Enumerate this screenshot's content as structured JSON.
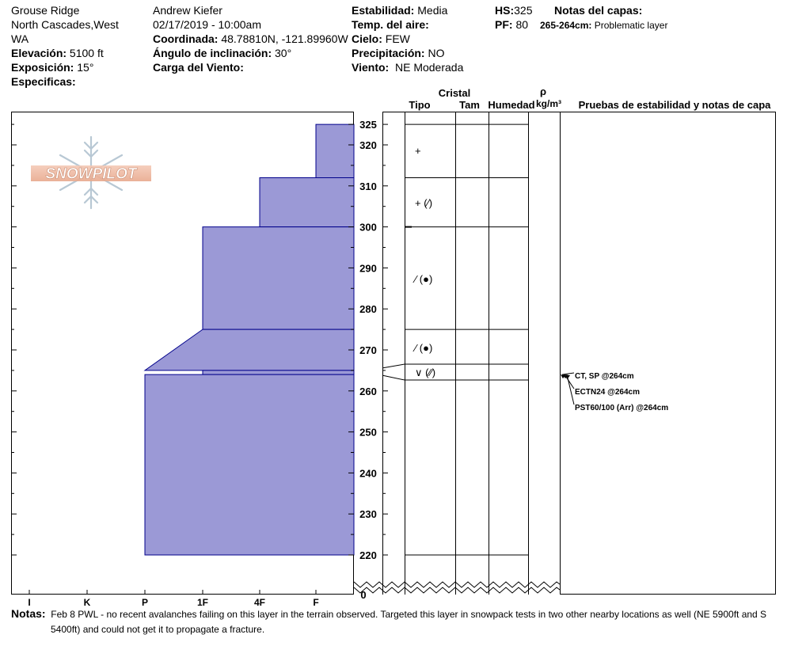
{
  "header": {
    "location": [
      "Grouse Ridge",
      "North Cascades,West",
      "WA"
    ],
    "elevation_label": "Elevación:",
    "elevation_value": "5100 ft",
    "aspect_label": "Exposición:",
    "aspect_value": "15°",
    "specifics_label": "Especificas:",
    "observer": "Andrew Kiefer",
    "datetime": "02/17/2019 - 10:00am",
    "coord_label": "Coordinada:",
    "coord_value": "48.78810N, -121.89960W",
    "slope_label": "Ángulo de inclinación:",
    "slope_value": "30°",
    "wind_load_label": "Carga del Viento:",
    "stability_label": "Estabilidad:",
    "stability_value": "Media",
    "air_temp_label": "Temp. del aire:",
    "sky_label": "Cielo:",
    "sky_value": "FEW",
    "precip_label": "Precipitación:",
    "precip_value": "NO",
    "wind_label": "Viento:",
    "wind_value": "NE Moderada",
    "hs_label": "HS:",
    "hs_value": "325",
    "pf_label": "PF:",
    "pf_value": "80",
    "layer_notes_label": "Notas del capas:",
    "layer_note_range": "265-264cm:",
    "layer_note_text": "Problematic layer"
  },
  "columns": {
    "cristal": "Cristal",
    "tipo": "Tipo",
    "tam": "Tam",
    "humedad": "Humedad",
    "rho": "ρ",
    "density_unit": "kg/m³",
    "tests_title": "Pruebas de estabilidad y notas de capa"
  },
  "logo_text": "SNOWPILOT",
  "notes_label": "Notas:",
  "notes_text": [
    "Feb 8 PWL - no recent avalanches failing on this layer in the terrain observed. Targeted this layer in snowpack tests in two other nearby locations as well (NE 5900ft and S",
    "5400ft) and could not get it to propagate a fracture."
  ],
  "chart_data": {
    "type": "snow-profile",
    "hardness_ticks": [
      "I",
      "K",
      "P",
      "1F",
      "4F",
      "F"
    ],
    "height_ticks": [
      220,
      230,
      240,
      250,
      260,
      270,
      280,
      290,
      300,
      310,
      320,
      325
    ],
    "height_zero_label": "0",
    "ylim": [
      215,
      328
    ],
    "layers": [
      {
        "top": 325,
        "bottom": 312,
        "hardness_top": "F",
        "hardness_bottom": "F",
        "grain": "+",
        "grain_connector": true
      },
      {
        "top": 312,
        "bottom": 300,
        "hardness_top": "4F",
        "hardness_bottom": "4F",
        "grain": "+ (⁄)",
        "grain_connector": false
      },
      {
        "top": 300,
        "bottom": 275,
        "hardness_top": "1F",
        "hardness_bottom": "1F",
        "grain": "⁄ (●)",
        "grain_connector": false
      },
      {
        "top": 275,
        "bottom": 265,
        "hardness_top": "1F",
        "hardness_bottom": "P",
        "grain": "⁄ (●)",
        "grain_connector": false
      },
      {
        "top": 265,
        "bottom": 264,
        "hardness_top": "1F",
        "hardness_bottom": "1F",
        "grain": "∨ (⁄⁄)",
        "grain_connector": false
      },
      {
        "top": 264,
        "bottom": 220,
        "hardness_top": "P",
        "hardness_bottom": "P",
        "grain": "",
        "grain_connector": false
      }
    ],
    "tests": [
      {
        "label": "CT, SP @264cm",
        "depth": 264
      },
      {
        "label": "ECTN24 @264cm",
        "depth": 264
      },
      {
        "label": "PST60/100 (Arr) @264cm",
        "depth": 264
      }
    ],
    "fill_color": "#9b99d6",
    "edge_color": "#00008b"
  }
}
